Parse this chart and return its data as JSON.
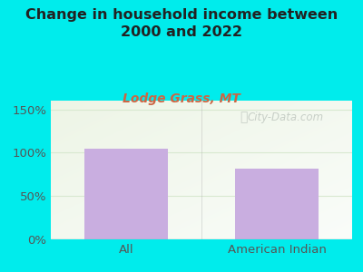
{
  "title": "Change in household income between\n2000 and 2022",
  "subtitle": "Lodge Grass, MT",
  "categories": [
    "All",
    "American Indian"
  ],
  "values": [
    105,
    82
  ],
  "bar_color": "#c9aee0",
  "title_fontsize": 11.5,
  "subtitle_fontsize": 10,
  "subtitle_color": "#cc6644",
  "tick_label_fontsize": 9.5,
  "yticks": [
    0,
    50,
    100,
    150
  ],
  "ytick_labels": [
    "0%",
    "50%",
    "100%",
    "150%"
  ],
  "ylim": [
    0,
    160
  ],
  "bg_outer_color": "#00ecec",
  "watermark_text": "City-Data.com",
  "grid_color": "#d8e8d0",
  "axis_line_color": "#aaaaaa",
  "title_color": "#222222",
  "xtick_color": "#555555"
}
